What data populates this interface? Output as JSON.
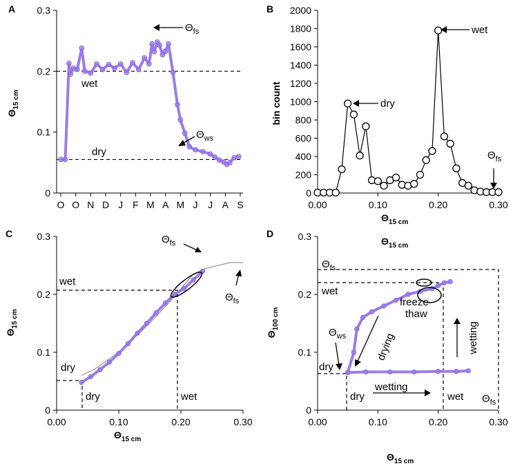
{
  "figure": {
    "panels": [
      "A",
      "B",
      "C",
      "D"
    ]
  },
  "chart_data": [
    {
      "id": "A",
      "type": "line",
      "title": "",
      "xlabel": "",
      "ylabel_main": "Θ",
      "ylabel_sub": "15 cm",
      "ylim": [
        0,
        0.3
      ],
      "yticks": [
        0,
        0.1,
        0.2,
        0.3
      ],
      "ytick_labels": [
        "0",
        "0.1",
        "0.2",
        "0.3"
      ],
      "xtick_labels": [
        "O",
        "O",
        "N",
        "D",
        "J",
        "F",
        "M",
        "A",
        "M",
        "J",
        "J",
        "A",
        "S"
      ],
      "hlines": [
        {
          "label": "wet",
          "y": 0.2
        },
        {
          "label": "dry",
          "y": 0.055
        }
      ],
      "series": [
        {
          "name": "Θ 15 cm",
          "x": [
            0,
            0.3,
            0.55,
            0.65,
            0.85,
            1.1,
            1.4,
            1.6,
            2.0,
            2.4,
            2.8,
            3.2,
            3.6,
            4.0,
            4.4,
            4.8,
            5.2,
            5.6,
            5.9,
            6.1,
            6.25,
            6.45,
            6.6,
            6.8,
            7.0,
            7.2,
            7.5,
            7.8,
            8.0,
            8.3,
            8.6,
            9.0,
            9.5,
            10.0,
            10.3,
            10.6,
            10.9,
            11.1,
            11.3,
            11.6,
            11.9
          ],
          "y": [
            0.055,
            0.055,
            0.213,
            0.195,
            0.205,
            0.203,
            0.238,
            0.2,
            0.197,
            0.212,
            0.203,
            0.211,
            0.205,
            0.212,
            0.198,
            0.214,
            0.203,
            0.222,
            0.212,
            0.245,
            0.232,
            0.248,
            0.243,
            0.227,
            0.233,
            0.245,
            0.198,
            0.145,
            0.12,
            0.098,
            0.076,
            0.071,
            0.068,
            0.064,
            0.059,
            0.054,
            0.051,
            0.047,
            0.05,
            0.058,
            0.06
          ]
        }
      ]
    },
    {
      "id": "B",
      "type": "line",
      "xlabel_main": "Θ",
      "xlabel_sub": "15 cm",
      "ylabel": "bin count",
      "xlim": [
        0,
        0.3
      ],
      "ylim": [
        0,
        2000
      ],
      "xticks": [
        0,
        0.1,
        0.2,
        0.3
      ],
      "xtick_labels": [
        "0.00",
        "0.10",
        "0.20",
        "0.30"
      ],
      "yticks": [
        0,
        200,
        400,
        600,
        800,
        1000,
        1200,
        1400,
        1600,
        1800,
        2000
      ],
      "ytick_labels": [
        "0",
        "200",
        "400",
        "600",
        "800",
        "1000",
        "1200",
        "1400",
        "1600",
        "1800",
        "2000"
      ],
      "series": [
        {
          "name": "bin count",
          "x": [
            0.0,
            0.01,
            0.02,
            0.03,
            0.04,
            0.05,
            0.06,
            0.07,
            0.08,
            0.09,
            0.1,
            0.11,
            0.12,
            0.13,
            0.14,
            0.15,
            0.16,
            0.17,
            0.18,
            0.19,
            0.2,
            0.21,
            0.22,
            0.23,
            0.24,
            0.25,
            0.26,
            0.27,
            0.28,
            0.29,
            0.3
          ],
          "y": [
            5,
            5,
            5,
            5,
            260,
            980,
            860,
            410,
            730,
            140,
            130,
            80,
            140,
            170,
            90,
            80,
            100,
            200,
            360,
            460,
            1780,
            620,
            540,
            270,
            110,
            80,
            30,
            15,
            10,
            10,
            10
          ]
        }
      ]
    },
    {
      "id": "C",
      "type": "scatter",
      "xlabel_main": "Θ",
      "xlabel_sub": "15 cm",
      "ylabel_main": "Θ",
      "ylabel_sub": "15 cm",
      "xlim": [
        0,
        0.3
      ],
      "ylim": [
        0,
        0.3
      ],
      "xticks": [
        0,
        0.1,
        0.2,
        0.3
      ],
      "xtick_labels": [
        "0.00",
        "0.10",
        "0.20",
        "0.30"
      ],
      "yticks": [
        0,
        0.1,
        0.2,
        0.3
      ],
      "ytick_labels": [
        "0",
        "0.1",
        "0.2",
        "0.3"
      ],
      "series": [
        {
          "name": "measured (purple)",
          "x": [
            0.04,
            0.055,
            0.07,
            0.085,
            0.1,
            0.115,
            0.13,
            0.145,
            0.16,
            0.175,
            0.19,
            0.205,
            0.22,
            0.235
          ],
          "y": [
            0.048,
            0.058,
            0.07,
            0.083,
            0.098,
            0.115,
            0.133,
            0.15,
            0.168,
            0.185,
            0.2,
            0.21,
            0.225,
            0.24
          ]
        },
        {
          "name": "modelled (gray)",
          "x": [
            0.04,
            0.06,
            0.08,
            0.1,
            0.12,
            0.14,
            0.16,
            0.18,
            0.2,
            0.22,
            0.24,
            0.26,
            0.28,
            0.3
          ],
          "y": [
            0.06,
            0.07,
            0.085,
            0.1,
            0.12,
            0.14,
            0.162,
            0.185,
            0.21,
            0.235,
            0.245,
            0.25,
            0.255,
            0.255
          ]
        }
      ]
    },
    {
      "id": "D",
      "type": "scatter",
      "xlabel_main": "Θ",
      "xlabel_sub": "15 cm",
      "ylabel_main": "Θ",
      "ylabel_sub": "100 cm",
      "xlim": [
        0,
        0.3
      ],
      "ylim": [
        0,
        0.3
      ],
      "xticks": [
        0,
        0.1,
        0.2,
        0.3
      ],
      "xtick_labels": [
        "0.00",
        "0.10",
        "0.20",
        "0.30"
      ],
      "yticks": [
        0,
        0.1,
        0.2,
        0.3
      ],
      "ytick_labels": [
        "0",
        "0.1",
        "0.2",
        "0.3"
      ],
      "series": [
        {
          "name": "drying path",
          "x": [
            0.05,
            0.06,
            0.065,
            0.075,
            0.09,
            0.11,
            0.13,
            0.15,
            0.17,
            0.19,
            0.2,
            0.21,
            0.22
          ],
          "y": [
            0.065,
            0.1,
            0.14,
            0.16,
            0.17,
            0.18,
            0.19,
            0.2,
            0.205,
            0.21,
            0.215,
            0.22,
            0.222
          ]
        },
        {
          "name": "wetting path",
          "x": [
            0.05,
            0.08,
            0.12,
            0.16,
            0.2,
            0.23,
            0.25
          ],
          "y": [
            0.065,
            0.066,
            0.066,
            0.066,
            0.067,
            0.067,
            0.068
          ]
        }
      ]
    }
  ],
  "annotations": {
    "a_theta_fs_main": "Θ",
    "a_theta_fs_sub": "fs",
    "a_theta_ws_main": "Θ",
    "a_theta_ws_sub": "ws",
    "a_wet": "wet",
    "a_dry": "dry",
    "b_dry": "dry",
    "b_wet": "wet",
    "b_theta_fs_main": "Θ",
    "b_theta_fs_sub": "fs",
    "c_theta_fs1_main": "Θ",
    "c_theta_fs1_sub": "fs",
    "c_theta_fs2_main": "Θ",
    "c_theta_fs2_sub": "fs",
    "c_wet_y": "wet",
    "c_dry_y": "dry",
    "c_dry_x": "dry",
    "c_wet_x": "wet",
    "d_theta_fs_top_main": "Θ",
    "d_theta_fs_top_sub": "fs",
    "d_wet_y": "wet",
    "d_theta_ws_main": "Θ",
    "d_theta_ws_sub": "ws",
    "d_dry_y": "dry",
    "d_dry_x": "dry",
    "d_wet_x": "wet",
    "d_theta_fs_x_main": "Θ",
    "d_theta_fs_x_sub": "fs",
    "d_drying": "drying",
    "d_wetting_h": "wetting",
    "d_wetting_v": "wetting",
    "d_freeze": "freeze",
    "d_thaw": "thaw"
  }
}
